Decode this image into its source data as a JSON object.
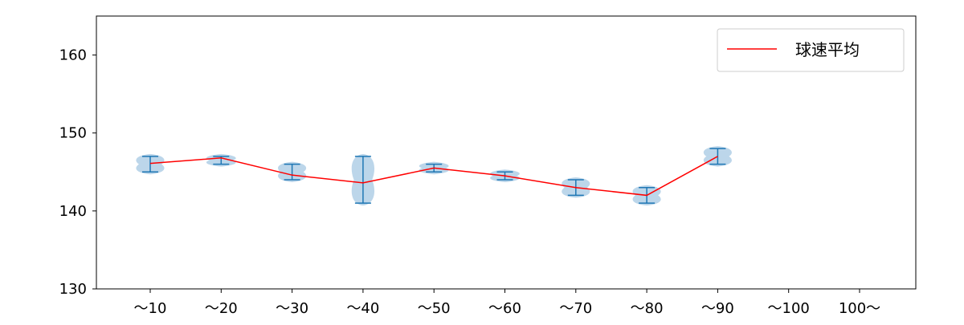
{
  "chart_data": {
    "type": "violin",
    "categories": [
      "～10",
      "～20",
      "～30",
      "～40",
      "～50",
      "～60",
      "～70",
      "～80",
      "～90",
      "～100",
      "100～"
    ],
    "ylim": [
      130,
      165
    ],
    "yticks": [
      130,
      140,
      150,
      160
    ],
    "ytick_labels": [
      "130",
      "140",
      "150",
      "160"
    ],
    "grid": false,
    "legend_position": "top-right",
    "violins": [
      {
        "category": "～10",
        "min": 145,
        "max": 147
      },
      {
        "category": "～20",
        "min": 146,
        "max": 147
      },
      {
        "category": "～30",
        "min": 144,
        "max": 146
      },
      {
        "category": "～40",
        "min": 141,
        "max": 147
      },
      {
        "category": "～50",
        "min": 145,
        "max": 146
      },
      {
        "category": "～60",
        "min": 144,
        "max": 145
      },
      {
        "category": "～70",
        "min": 142,
        "max": 144
      },
      {
        "category": "～80",
        "min": 141,
        "max": 143
      },
      {
        "category": "～90",
        "min": 146,
        "max": 148
      }
    ],
    "series": [
      {
        "name": "球速平均",
        "color": "#ff0000",
        "values": [
          146.1,
          146.8,
          144.6,
          143.6,
          145.5,
          144.5,
          143.0,
          142.0,
          147.0,
          null,
          null
        ]
      }
    ],
    "colors": {
      "violin_fill": "#a6c8e3",
      "violin_line": "#1f77b4",
      "average_line": "#ff0000"
    }
  }
}
